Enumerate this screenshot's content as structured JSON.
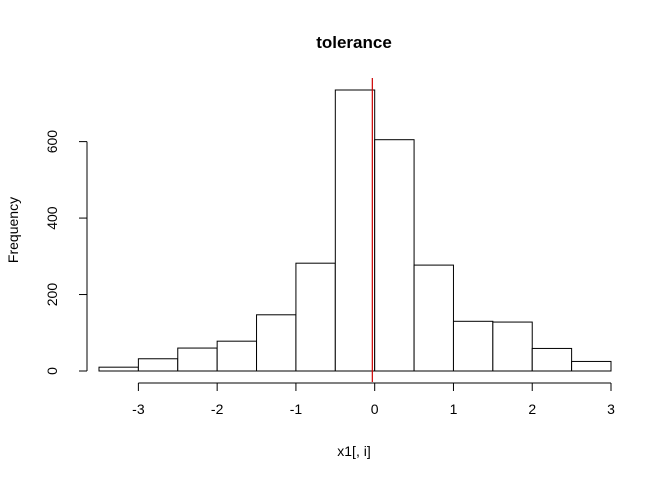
{
  "chart_data": {
    "type": "bar",
    "title": "tolerance",
    "xlabel": "x1[, i]",
    "ylabel": "Frequency",
    "bins": [
      {
        "x0": -3.5,
        "x1": -3.0,
        "count": 10
      },
      {
        "x0": -3.0,
        "x1": -2.5,
        "count": 32
      },
      {
        "x0": -2.5,
        "x1": -2.0,
        "count": 60
      },
      {
        "x0": -2.0,
        "x1": -1.5,
        "count": 78
      },
      {
        "x0": -1.5,
        "x1": -1.0,
        "count": 147
      },
      {
        "x0": -1.0,
        "x1": -0.5,
        "count": 282
      },
      {
        "x0": -0.5,
        "x1": 0.0,
        "count": 735
      },
      {
        "x0": 0.0,
        "x1": 0.5,
        "count": 605
      },
      {
        "x0": 0.5,
        "x1": 1.0,
        "count": 277
      },
      {
        "x0": 1.0,
        "x1": 1.5,
        "count": 130
      },
      {
        "x0": 1.5,
        "x1": 2.0,
        "count": 128
      },
      {
        "x0": 2.0,
        "x1": 2.5,
        "count": 59
      },
      {
        "x0": 2.5,
        "x1": 3.0,
        "count": 25
      }
    ],
    "xlim": [
      -3.5,
      3.0
    ],
    "ylim": [
      0,
      735
    ],
    "xticks": [
      -3,
      -2,
      -1,
      0,
      1,
      2,
      3
    ],
    "xtick_labels": [
      "-3",
      "-2",
      "-1",
      "0",
      "1",
      "2",
      "3"
    ],
    "yticks": [
      0,
      200,
      400,
      600
    ],
    "ytick_labels": [
      "0",
      "200",
      "400",
      "600"
    ],
    "reference_line": {
      "x": -0.03,
      "color": "#cc0000"
    },
    "bar_fill": "#ffffff",
    "bar_stroke": "#000000",
    "grid": false,
    "legend": "none"
  }
}
